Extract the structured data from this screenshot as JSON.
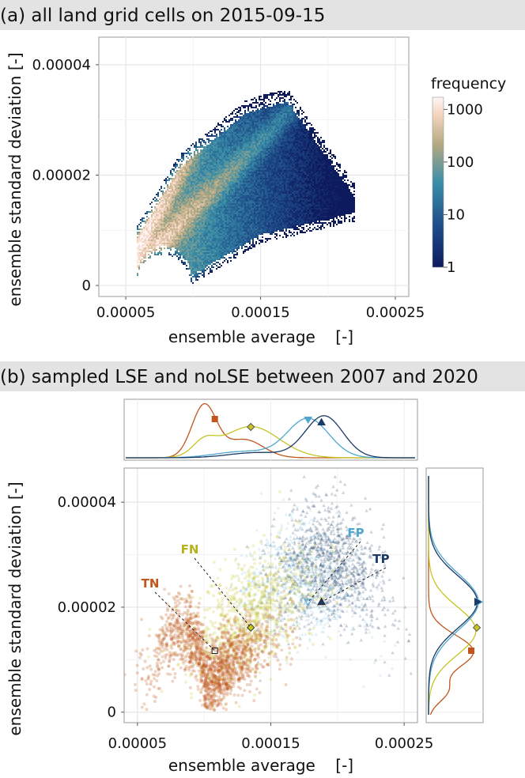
{
  "panel_a": {
    "title": "(a) all land grid cells on 2015-09-15"
  },
  "panel_b": {
    "title": "(b) sampled LSE and noLSE between 2007 and 2020"
  },
  "colors": {
    "TN": "#c0561c",
    "FN": "#c6c523",
    "FP": "#4fa7d0",
    "TP": "#1b3a64",
    "header_bg": "#e3e3e3"
  },
  "chart_data": [
    {
      "type": "heatmap",
      "xlabel": "ensemble average    [-]",
      "ylabel": "ensemble standard deviation [-]",
      "x_ticks": [
        5e-05,
        0.00015,
        0.00025
      ],
      "x_tick_labels": [
        "0.00005",
        "0.00015",
        "0.00025"
      ],
      "y_ticks": [
        0,
        2e-05,
        4e-05
      ],
      "y_tick_labels": [
        "0",
        "0.00002",
        "0.00004"
      ],
      "xlim": [
        3e-05,
        0.00026
      ],
      "ylim": [
        -2e-06,
        4.5e-05
      ],
      "grid": true,
      "colorbar": {
        "title": "frequency",
        "scale": "log",
        "ticks": [
          1,
          10,
          100,
          1000
        ],
        "tick_labels": [
          "1",
          "10",
          "100",
          "1000"
        ],
        "colors": [
          "#0d1b5e",
          "#1f4e8a",
          "#3a8fa8",
          "#b3a880",
          "#f6d5c0",
          "#fdf5f7"
        ]
      }
    },
    {
      "type": "scatter",
      "xlabel": "ensemble average    [-]",
      "ylabel": "ensemble standard deviation [-]",
      "x_ticks": [
        5e-05,
        0.00015,
        0.00025
      ],
      "x_tick_labels": [
        "0.00005",
        "0.00015",
        "0.00025"
      ],
      "y_ticks": [
        0,
        2e-05,
        4e-05
      ],
      "y_tick_labels": [
        "0",
        "0.00002",
        "0.00004"
      ],
      "xlim": [
        4e-05,
        0.00026
      ],
      "ylim": [
        -2e-06,
        4.65e-05
      ],
      "grid": true,
      "series": [
        {
          "name": "TN",
          "marker": "square",
          "median": [
            0.000108,
            1.17e-05
          ]
        },
        {
          "name": "FN",
          "marker": "diamond",
          "median": [
            0.000135,
            1.61e-05
          ]
        },
        {
          "name": "FP",
          "marker": "triangle-down",
          "median": [
            0.000178,
            2.1e-05
          ]
        },
        {
          "name": "TP",
          "marker": "triangle-up",
          "median": [
            0.000188,
            2.1e-05
          ]
        }
      ],
      "annotations": [
        {
          "label": "TN",
          "series": "TN"
        },
        {
          "label": "FN",
          "series": "FN"
        },
        {
          "label": "FP",
          "series": "FP"
        },
        {
          "label": "TP",
          "series": "TP"
        }
      ],
      "marginals": "density curves per series on top (x) and right (y)"
    }
  ]
}
